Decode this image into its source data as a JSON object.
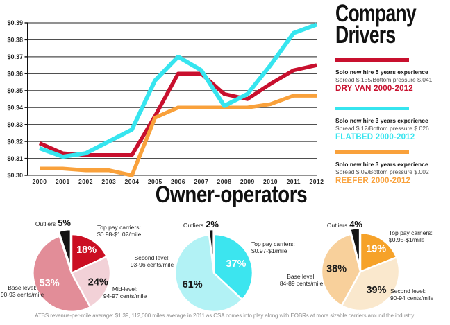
{
  "header": {
    "title_lines": [
      "Company",
      "Drivers"
    ]
  },
  "owner_section": {
    "title": "Owner-operators",
    "footnote": "ATBS revenue-per-mile average: $1.39, 112,000 miles average in 2011 as CSA comes into play along with EOBRs at more sizable carriers around the industry."
  },
  "chart_data": [
    {
      "type": "line",
      "title": "Company Drivers",
      "xlabel": "",
      "ylabel": "",
      "grid": true,
      "legend_position": "right",
      "ylim": [
        0.3,
        0.39
      ],
      "y_tick_labels": [
        "$0.39",
        "$0.38",
        "$0.37",
        "$0.36",
        "$0.35",
        "$0.34",
        "$0.33",
        "$0.32",
        "$0.31",
        "$0.30"
      ],
      "x": [
        "2000",
        "2001",
        "2002",
        "2003",
        "2004",
        "2005",
        "2006",
        "2007",
        "2008",
        "2009",
        "2010",
        "2011",
        "2012"
      ],
      "series": [
        {
          "name": "DRY VAN 2000-2012",
          "color": "#c8102e",
          "values": [
            0.319,
            0.313,
            0.312,
            0.312,
            0.312,
            0.335,
            0.36,
            0.36,
            0.348,
            0.345,
            0.354,
            0.362,
            0.365
          ]
        },
        {
          "name": "FLATBED 2000-2012",
          "color": "#36e5ef",
          "values": [
            0.316,
            0.311,
            0.313,
            0.32,
            0.327,
            0.356,
            0.37,
            0.362,
            0.341,
            0.348,
            0.365,
            0.384,
            0.389
          ]
        },
        {
          "name": "REEFER 2000-2012",
          "color": "#f9a13b",
          "values": [
            0.304,
            0.304,
            0.303,
            0.303,
            0.3,
            0.334,
            0.34,
            0.34,
            0.34,
            0.34,
            0.342,
            0.347,
            0.347
          ]
        }
      ],
      "legend": [
        {
          "heading": "Solo new hire 5 years experience",
          "detail": "Spread $.155/Bottom pressure $.041"
        },
        {
          "heading": "Solo new hire 3 years experience",
          "detail": "Spread $.12/Bottom pressure $.026"
        },
        {
          "heading": "Solo new hire 3 years experience",
          "detail": "Spread $.09/Bottom pressure $.002"
        }
      ]
    },
    {
      "type": "pie",
      "slices": [
        {
          "label_lines": [
            "Top pay carriers:",
            "$0.98-$1.02/mile"
          ],
          "value": 18,
          "pct_label": "18%",
          "color": "#cb0e22",
          "pct_color": "#ffffff",
          "inside": true
        },
        {
          "label_lines": [
            "Mid-level:",
            "94-97 cents/mile"
          ],
          "value": 24,
          "pct_label": "24%",
          "color": "#f2d1d7",
          "pct_color": "#1a1a1a",
          "inside": true
        },
        {
          "label_lines": [
            "Base level:",
            "90-93 cents/mile"
          ],
          "value": 53,
          "pct_label": "53%",
          "color": "#e28d98",
          "pct_color": "#ffffff",
          "inside": true
        },
        {
          "label_lines": [
            "Outliers"
          ],
          "value": 5,
          "pct_label": "5%",
          "color": "#141414",
          "inside": false,
          "explode": true
        }
      ]
    },
    {
      "type": "pie",
      "slices": [
        {
          "label_lines": [
            "Top pay carriers:",
            "$0.97-$1/mile"
          ],
          "value": 37,
          "pct_label": "37%",
          "color": "#3ce5ef",
          "pct_color": "#ffffff",
          "inside": true
        },
        {
          "label_lines": [
            "Second level:",
            "93-96 cents/mile"
          ],
          "value": 61,
          "pct_label": "61%",
          "color": "#b2f2f5",
          "pct_color": "#1a1a1a",
          "inside": true
        },
        {
          "label_lines": [
            "Outliers"
          ],
          "value": 2,
          "pct_label": "2%",
          "color": "#141414",
          "inside": false,
          "explode": true
        }
      ]
    },
    {
      "type": "pie",
      "slices": [
        {
          "label_lines": [
            "Top pay carriers:",
            "$0.95-$1/mile"
          ],
          "value": 19,
          "pct_label": "19%",
          "color": "#f6a229",
          "pct_color": "#ffffff",
          "inside": true
        },
        {
          "label_lines": [
            "Second level:",
            "90-94 cents/mile"
          ],
          "value": 39,
          "pct_label": "39%",
          "color": "#fae8cd",
          "pct_color": "#1a1a1a",
          "inside": true
        },
        {
          "label_lines": [
            "Base level:",
            "84-89 cents/mile"
          ],
          "value": 38,
          "pct_label": "38%",
          "color": "#f8d09b",
          "pct_color": "#1a1a1a",
          "inside": true
        },
        {
          "label_lines": [
            "Outliers"
          ],
          "value": 4,
          "pct_label": "4%",
          "color": "#141414",
          "inside": false,
          "explode": true
        }
      ]
    }
  ]
}
